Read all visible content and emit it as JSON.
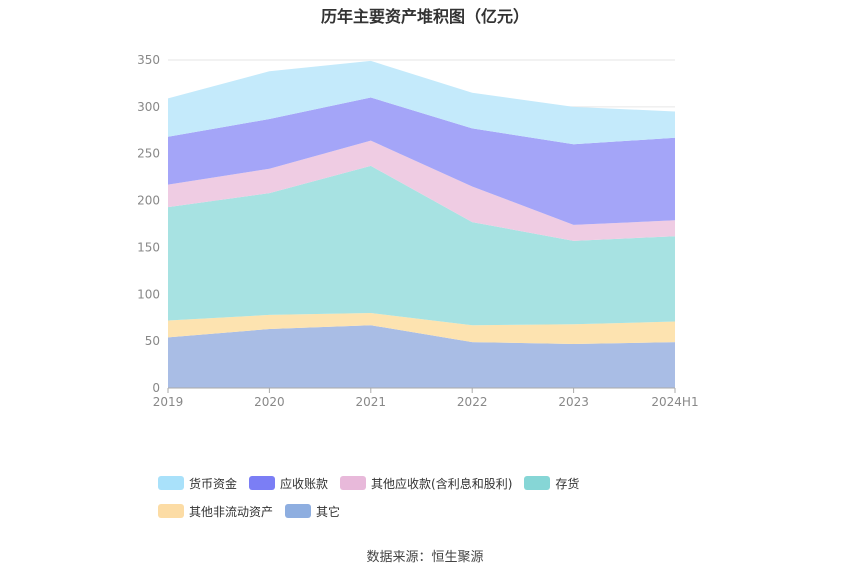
{
  "title": "历年主要资产堆积图（亿元）",
  "source": "数据来源：恒生聚源",
  "chart_data": {
    "type": "area",
    "stacked": true,
    "title": "历年主要资产堆积图（亿元）",
    "categories": [
      "2019",
      "2020",
      "2021",
      "2022",
      "2023",
      "2024H1"
    ],
    "ylim": [
      0,
      350
    ],
    "yticks": [
      0,
      50,
      100,
      150,
      200,
      250,
      300,
      350
    ],
    "grid": true,
    "legend_position": "bottom",
    "series": [
      {
        "name": "其它",
        "color": "#a9bde5",
        "values": [
          54,
          63,
          67,
          49,
          47,
          49
        ]
      },
      {
        "name": "其他非流动资产",
        "color": "#fde3b0",
        "values": [
          18,
          15,
          13,
          18,
          21,
          22
        ]
      },
      {
        "name": "存货",
        "color": "#a7e2e2",
        "values": [
          121,
          130,
          157,
          110,
          89,
          91
        ]
      },
      {
        "name": "其他应收款(含利息和股利)",
        "color": "#efcce3",
        "values": [
          24,
          26,
          27,
          38,
          17,
          17
        ]
      },
      {
        "name": "应收账款",
        "color": "#a4a5f8",
        "values": [
          51,
          53,
          46,
          62,
          86,
          88
        ]
      },
      {
        "name": "货币资金",
        "color": "#c4eafb",
        "values": [
          41,
          51,
          39,
          38,
          40,
          28
        ]
      }
    ],
    "legend": [
      {
        "name": "货币资金",
        "color": "#a9e1fa"
      },
      {
        "name": "应收账款",
        "color": "#7b7ef5"
      },
      {
        "name": "其他应收款(含利息和股利)",
        "color": "#e8b9da"
      },
      {
        "name": "存货",
        "color": "#86d6d6"
      },
      {
        "name": "其他非流动资产",
        "color": "#fcdca5"
      },
      {
        "name": "其它",
        "color": "#8eaee0"
      }
    ]
  }
}
